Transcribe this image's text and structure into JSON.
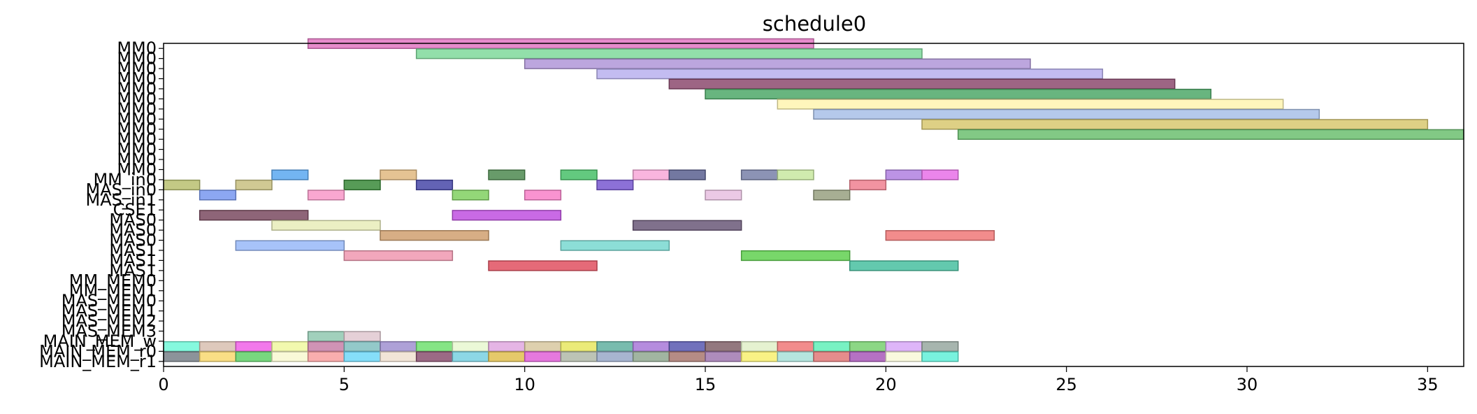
{
  "chart_data": {
    "type": "gantt",
    "title": "schedule0",
    "xlim": [
      0,
      36
    ],
    "x_ticks": [
      0,
      5,
      10,
      15,
      20,
      25,
      30,
      35
    ],
    "grid": false,
    "rows": [
      "MM0",
      "MM0",
      "MM0",
      "MM0",
      "MM0",
      "MM0",
      "MM0",
      "MM0",
      "MM0",
      "MM0",
      "MM0",
      "MM0",
      "MM0",
      "MM_in0",
      "MAS_in0",
      "MAS_in1",
      "CSE1",
      "MAS0",
      "MAS0",
      "MAS0",
      "MAS1",
      "MAS1",
      "MAS1",
      "MM_MEM0",
      "MM_MEM1",
      "MAS_MEM0",
      "MAS_MEM1",
      "MAS_MEM2",
      "MAS_MEM3",
      "MAIN_MEM_w",
      "MAIN_MEM_r0",
      "MAIN_MEM_r1"
    ],
    "bars": [
      {
        "row": 0,
        "start": 4,
        "end": 18,
        "color": "#e377c2"
      },
      {
        "row": 1,
        "start": 7,
        "end": 21,
        "color": "#7fd99b"
      },
      {
        "row": 2,
        "start": 10,
        "end": 24,
        "color": "#b096d8"
      },
      {
        "row": 3,
        "start": 12,
        "end": 26,
        "color": "#b8b0ee"
      },
      {
        "row": 4,
        "start": 14,
        "end": 28,
        "color": "#8c4a6e"
      },
      {
        "row": 5,
        "start": 15,
        "end": 29,
        "color": "#4ea868"
      },
      {
        "row": 6,
        "start": 17,
        "end": 31,
        "color": "#fff5b0"
      },
      {
        "row": 7,
        "start": 18,
        "end": 32,
        "color": "#a8c0e8"
      },
      {
        "row": 8,
        "start": 21,
        "end": 35,
        "color": "#d8c870"
      },
      {
        "row": 9,
        "start": 22,
        "end": 36,
        "color": "#6cc070"
      },
      {
        "row": 13,
        "start": 3,
        "end": 4,
        "color": "#5aa8f0"
      },
      {
        "row": 13,
        "start": 6,
        "end": 7,
        "color": "#e0b880"
      },
      {
        "row": 13,
        "start": 9,
        "end": 10,
        "color": "#4e8a50"
      },
      {
        "row": 13,
        "start": 11,
        "end": 12,
        "color": "#48c068"
      },
      {
        "row": 13,
        "start": 13,
        "end": 14,
        "color": "#f8a8d8"
      },
      {
        "row": 13,
        "start": 14,
        "end": 15,
        "color": "#5a6090"
      },
      {
        "row": 13,
        "start": 16,
        "end": 17,
        "color": "#7880a8"
      },
      {
        "row": 13,
        "start": 17,
        "end": 18,
        "color": "#c8e8a0"
      },
      {
        "row": 13,
        "start": 20,
        "end": 21,
        "color": "#b080e0"
      },
      {
        "row": 13,
        "start": 21,
        "end": 22,
        "color": "#e870e8"
      },
      {
        "row": 14,
        "start": 0,
        "end": 1,
        "color": "#b8c070"
      },
      {
        "row": 14,
        "start": 2,
        "end": 3,
        "color": "#c8c080"
      },
      {
        "row": 14,
        "start": 5,
        "end": 6,
        "color": "#3a8a3a"
      },
      {
        "row": 14,
        "start": 7,
        "end": 8,
        "color": "#4848a8"
      },
      {
        "row": 14,
        "start": 12,
        "end": 13,
        "color": "#7858d0"
      },
      {
        "row": 14,
        "start": 19,
        "end": 20,
        "color": "#f08090"
      },
      {
        "row": 15,
        "start": 1,
        "end": 2,
        "color": "#7898f0"
      },
      {
        "row": 15,
        "start": 4,
        "end": 5,
        "color": "#f898c8"
      },
      {
        "row": 15,
        "start": 8,
        "end": 9,
        "color": "#80d060"
      },
      {
        "row": 15,
        "start": 10,
        "end": 11,
        "color": "#f880c8"
      },
      {
        "row": 15,
        "start": 15,
        "end": 16,
        "color": "#e8c0e0"
      },
      {
        "row": 15,
        "start": 18,
        "end": 19,
        "color": "#98a080"
      },
      {
        "row": 17,
        "start": 1,
        "end": 4,
        "color": "#7a4a60"
      },
      {
        "row": 17,
        "start": 8,
        "end": 11,
        "color": "#c050e0"
      },
      {
        "row": 18,
        "start": 3,
        "end": 6,
        "color": "#e8ecb8"
      },
      {
        "row": 18,
        "start": 13,
        "end": 16,
        "color": "#6a5878"
      },
      {
        "row": 19,
        "start": 6,
        "end": 9,
        "color": "#d0a070"
      },
      {
        "row": 19,
        "start": 20,
        "end": 23,
        "color": "#f07878"
      },
      {
        "row": 20,
        "start": 2,
        "end": 5,
        "color": "#98b8f8"
      },
      {
        "row": 20,
        "start": 11,
        "end": 14,
        "color": "#78d8d0"
      },
      {
        "row": 21,
        "start": 5,
        "end": 8,
        "color": "#f098b0"
      },
      {
        "row": 21,
        "start": 16,
        "end": 19,
        "color": "#60d050"
      },
      {
        "row": 22,
        "start": 9,
        "end": 12,
        "color": "#e05060"
      },
      {
        "row": 22,
        "start": 19,
        "end": 22,
        "color": "#48c0a0"
      },
      {
        "row": 29,
        "start": 4,
        "end": 5,
        "color": "#90c8b0"
      },
      {
        "row": 29,
        "start": 5,
        "end": 6,
        "color": "#e0c8d0"
      },
      {
        "row": 30,
        "start": 0,
        "end": 1,
        "color": "#70f8d8"
      },
      {
        "row": 30,
        "start": 1,
        "end": 2,
        "color": "#d8c0b0"
      },
      {
        "row": 30,
        "start": 2,
        "end": 3,
        "color": "#f060e8"
      },
      {
        "row": 30,
        "start": 3,
        "end": 4,
        "color": "#f0f8a0"
      },
      {
        "row": 30,
        "start": 4,
        "end": 5,
        "color": "#c880a8"
      },
      {
        "row": 30,
        "start": 5,
        "end": 6,
        "color": "#80c0c0"
      },
      {
        "row": 30,
        "start": 6,
        "end": 7,
        "color": "#a090d0"
      },
      {
        "row": 30,
        "start": 7,
        "end": 8,
        "color": "#70e070"
      },
      {
        "row": 30,
        "start": 8,
        "end": 9,
        "color": "#e8f8d0"
      },
      {
        "row": 30,
        "start": 9,
        "end": 10,
        "color": "#e0a8e0"
      },
      {
        "row": 30,
        "start": 10,
        "end": 11,
        "color": "#d8c8a0"
      },
      {
        "row": 30,
        "start": 11,
        "end": 12,
        "color": "#e8e860"
      },
      {
        "row": 30,
        "start": 12,
        "end": 13,
        "color": "#60b0a0"
      },
      {
        "row": 30,
        "start": 13,
        "end": 14,
        "color": "#a878d8"
      },
      {
        "row": 30,
        "start": 14,
        "end": 15,
        "color": "#5858b0"
      },
      {
        "row": 30,
        "start": 15,
        "end": 16,
        "color": "#806068"
      },
      {
        "row": 30,
        "start": 16,
        "end": 17,
        "color": "#e0f0c8"
      },
      {
        "row": 30,
        "start": 17,
        "end": 18,
        "color": "#f07878"
      },
      {
        "row": 30,
        "start": 18,
        "end": 19,
        "color": "#60f0b8"
      },
      {
        "row": 30,
        "start": 19,
        "end": 20,
        "color": "#78d070"
      },
      {
        "row": 30,
        "start": 20,
        "end": 21,
        "color": "#d8a8f8"
      },
      {
        "row": 30,
        "start": 21,
        "end": 22,
        "color": "#98a8a0"
      },
      {
        "row": 31,
        "start": 0,
        "end": 1,
        "color": "#788088"
      },
      {
        "row": 31,
        "start": 1,
        "end": 2,
        "color": "#f8d870"
      },
      {
        "row": 31,
        "start": 2,
        "end": 3,
        "color": "#60d068"
      },
      {
        "row": 31,
        "start": 3,
        "end": 4,
        "color": "#f8f8d0"
      },
      {
        "row": 31,
        "start": 4,
        "end": 5,
        "color": "#f8a0a0"
      },
      {
        "row": 31,
        "start": 5,
        "end": 6,
        "color": "#70d8f8"
      },
      {
        "row": 31,
        "start": 6,
        "end": 7,
        "color": "#f0e0d0"
      },
      {
        "row": 31,
        "start": 7,
        "end": 8,
        "color": "#8a5070"
      },
      {
        "row": 31,
        "start": 8,
        "end": 9,
        "color": "#78d0e0"
      },
      {
        "row": 31,
        "start": 9,
        "end": 10,
        "color": "#e0c050"
      },
      {
        "row": 31,
        "start": 10,
        "end": 11,
        "color": "#e060d8"
      },
      {
        "row": 31,
        "start": 11,
        "end": 12,
        "color": "#b0b8a8"
      },
      {
        "row": 31,
        "start": 12,
        "end": 13,
        "color": "#98a8c8"
      },
      {
        "row": 31,
        "start": 13,
        "end": 14,
        "color": "#90a890"
      },
      {
        "row": 31,
        "start": 14,
        "end": 15,
        "color": "#a87870"
      },
      {
        "row": 31,
        "start": 15,
        "end": 16,
        "color": "#a078b0"
      },
      {
        "row": 31,
        "start": 16,
        "end": 17,
        "color": "#f8f070"
      },
      {
        "row": 31,
        "start": 17,
        "end": 18,
        "color": "#a8e0d8"
      },
      {
        "row": 31,
        "start": 18,
        "end": 19,
        "color": "#e07878"
      },
      {
        "row": 31,
        "start": 19,
        "end": 20,
        "color": "#a858b8"
      },
      {
        "row": 31,
        "start": 20,
        "end": 21,
        "color": "#f8f8d8"
      },
      {
        "row": 31,
        "start": 21,
        "end": 22,
        "color": "#60f0d8"
      }
    ]
  }
}
